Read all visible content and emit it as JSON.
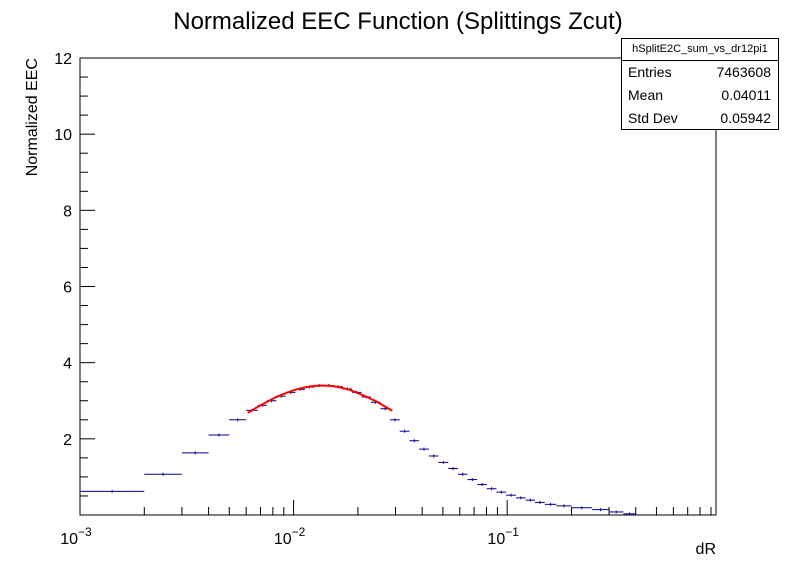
{
  "title": "Normalized EEC Function (Splittings Zcut)",
  "stats": {
    "name": "hSplitE2C_sum_vs_dr12pi1",
    "rows": [
      {
        "label": "Entries",
        "value": "7463608"
      },
      {
        "label": "Mean",
        "value": "0.04011"
      },
      {
        "label": "Std Dev",
        "value": "0.05942"
      }
    ]
  },
  "colors": {
    "histogram": "#00008b",
    "fit": "#ff0000",
    "axis": "#000000"
  },
  "chart_data": {
    "type": "line",
    "title": "Normalized EEC Function (Splittings Zcut)",
    "xlabel": "dR",
    "ylabel": "Normalized EEC",
    "xscale": "log",
    "xlim": [
      0.001,
      0.95
    ],
    "ylim": [
      0,
      12
    ],
    "xticks": [
      {
        "v": 0.001,
        "base": "10",
        "exp": "−3"
      },
      {
        "v": 0.01,
        "base": "10",
        "exp": "−2"
      },
      {
        "v": 0.1,
        "base": "10",
        "exp": "−1"
      }
    ],
    "yticks": [
      2,
      4,
      6,
      8,
      10,
      12
    ],
    "grid": false,
    "legend": "none",
    "series": [
      {
        "kind": "histogram",
        "bins": [
          [
            0.001,
            0.002,
            0.62
          ],
          [
            0.002,
            0.003,
            1.07
          ],
          [
            0.003,
            0.004,
            1.63
          ],
          [
            0.004,
            0.005,
            2.1
          ],
          [
            0.005,
            0.006,
            2.5
          ],
          [
            0.006,
            0.0068,
            2.75
          ],
          [
            0.0068,
            0.0075,
            2.88
          ],
          [
            0.0075,
            0.0083,
            3.0
          ],
          [
            0.0083,
            0.0092,
            3.12
          ],
          [
            0.0092,
            0.0102,
            3.22
          ],
          [
            0.0102,
            0.0113,
            3.3
          ],
          [
            0.0113,
            0.0125,
            3.36
          ],
          [
            0.0125,
            0.0139,
            3.4
          ],
          [
            0.0139,
            0.0154,
            3.4
          ],
          [
            0.0154,
            0.017,
            3.37
          ],
          [
            0.017,
            0.0188,
            3.31
          ],
          [
            0.0188,
            0.0208,
            3.22
          ],
          [
            0.0208,
            0.023,
            3.1
          ],
          [
            0.023,
            0.0255,
            2.96
          ],
          [
            0.0255,
            0.0283,
            2.79
          ],
          [
            0.0283,
            0.0314,
            2.5
          ],
          [
            0.0314,
            0.0349,
            2.2
          ],
          [
            0.0349,
            0.0387,
            1.95
          ],
          [
            0.0387,
            0.043,
            1.73
          ],
          [
            0.043,
            0.0477,
            1.55
          ],
          [
            0.0477,
            0.053,
            1.38
          ],
          [
            0.053,
            0.0588,
            1.22
          ],
          [
            0.0588,
            0.0652,
            1.07
          ],
          [
            0.0652,
            0.0724,
            0.93
          ],
          [
            0.0724,
            0.0803,
            0.8
          ],
          [
            0.0803,
            0.0891,
            0.69
          ],
          [
            0.0891,
            0.0989,
            0.6
          ],
          [
            0.0989,
            0.11,
            0.52
          ],
          [
            0.11,
            0.122,
            0.45
          ],
          [
            0.122,
            0.135,
            0.39
          ],
          [
            0.135,
            0.15,
            0.33
          ],
          [
            0.15,
            0.17,
            0.28
          ],
          [
            0.17,
            0.2,
            0.24
          ],
          [
            0.2,
            0.25,
            0.19
          ],
          [
            0.25,
            0.3,
            0.14
          ],
          [
            0.3,
            0.35,
            0.08
          ],
          [
            0.35,
            0.4,
            0.03
          ]
        ]
      },
      {
        "kind": "fit",
        "x": [
          0.0061,
          0.0068,
          0.0075,
          0.0083,
          0.0092,
          0.0102,
          0.0113,
          0.0125,
          0.0137,
          0.015,
          0.0165,
          0.0182,
          0.02,
          0.022,
          0.0242,
          0.0266,
          0.029
        ],
        "y": [
          2.68,
          2.84,
          2.97,
          3.1,
          3.2,
          3.29,
          3.35,
          3.39,
          3.4,
          3.39,
          3.35,
          3.29,
          3.2,
          3.1,
          2.99,
          2.86,
          2.74
        ]
      }
    ]
  }
}
